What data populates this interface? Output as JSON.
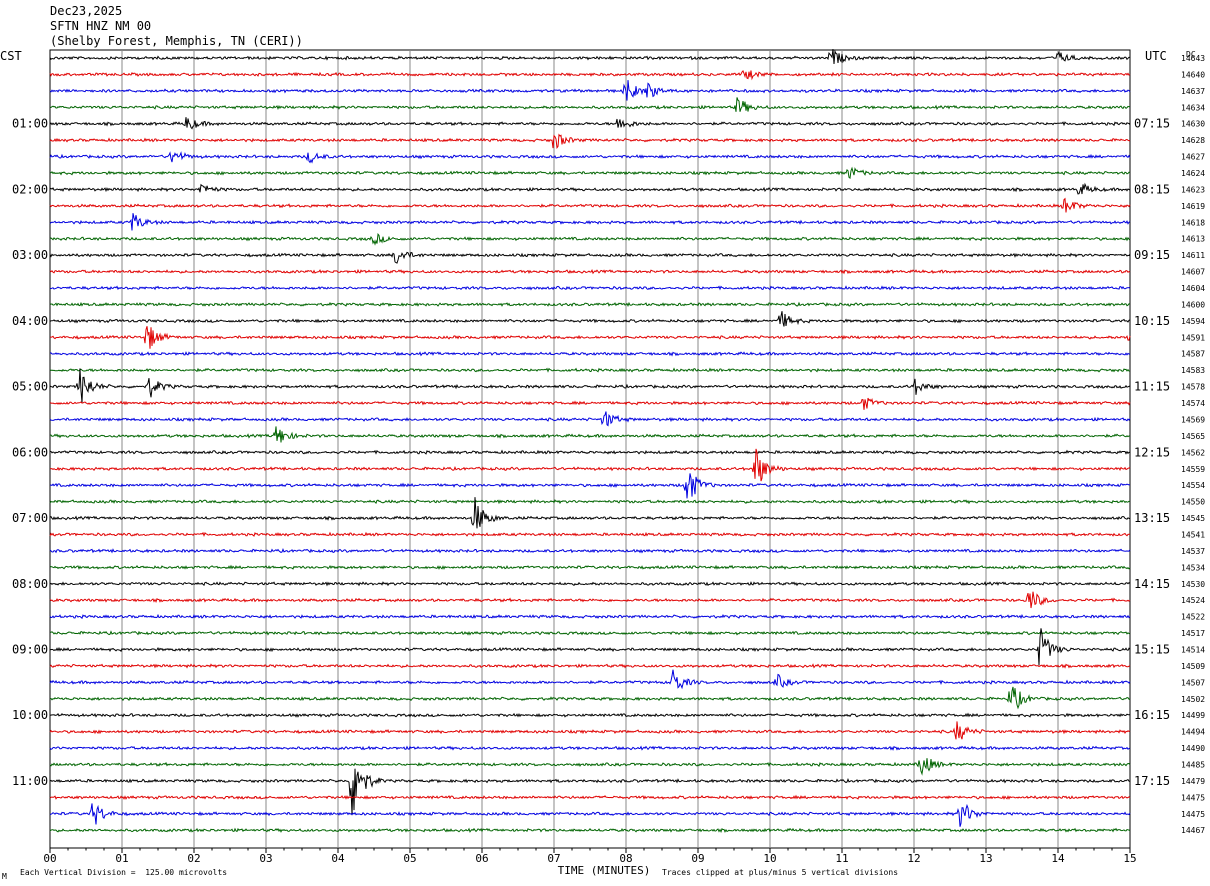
{
  "header": {
    "date": "Dec23,2025",
    "station": "SFTN HNZ NM 00",
    "location": "(Shelby Forest, Memphis, TN (CERI))"
  },
  "chart_data": {
    "type": "line",
    "title": "Dec23,2025 SFTN HNZ NM 00 (Shelby Forest, Memphis, TN (CERI))",
    "xlabel": "TIME (MINUTES)",
    "left_axis_label": "CST",
    "right_axis_label": "UTC",
    "dc_label": "DC",
    "xlim": [
      0,
      15
    ],
    "x_ticks": [
      "00",
      "01",
      "02",
      "03",
      "04",
      "05",
      "06",
      "07",
      "08",
      "09",
      "10",
      "11",
      "12",
      "13",
      "14",
      "15"
    ],
    "trace_colors": [
      "#000000",
      "#e00000",
      "#0000e0",
      "#006400"
    ],
    "trace_count": 48,
    "trace_minutes": 15,
    "left_time_labels": [
      "01:00",
      "02:00",
      "03:00",
      "04:00",
      "05:00",
      "06:00",
      "07:00",
      "08:00",
      "09:00",
      "10:00",
      "11:00"
    ],
    "right_time_labels": [
      "07:15",
      "08:15",
      "09:15",
      "10:15",
      "11:15",
      "12:15",
      "13:15",
      "14:15",
      "15:15",
      "16:15",
      "17:15"
    ],
    "dc_offsets": [
      14643,
      14640,
      14637,
      14634,
      14630,
      14628,
      14627,
      14624,
      14623,
      14619,
      14618,
      14613,
      14611,
      14607,
      14604,
      14600,
      14594,
      14591,
      14587,
      14583,
      14578,
      14574,
      14569,
      14565,
      14562,
      14559,
      14554,
      14550,
      14545,
      14541,
      14537,
      14534,
      14530,
      14524,
      14522,
      14517,
      14514,
      14509,
      14507,
      14502,
      14499,
      14494,
      14490,
      14485,
      14479,
      14475,
      14475,
      14467
    ],
    "events": [
      {
        "trace": 0,
        "minute": 10.85,
        "amp": 1.1
      },
      {
        "trace": 0,
        "minute": 14.0,
        "amp": 0.7
      },
      {
        "trace": 1,
        "minute": 9.65,
        "amp": 0.7
      },
      {
        "trace": 2,
        "minute": 8.0,
        "amp": 1.4
      },
      {
        "trace": 2,
        "minute": 8.3,
        "amp": 0.9
      },
      {
        "trace": 3,
        "minute": 9.55,
        "amp": 1.2
      },
      {
        "trace": 4,
        "minute": 1.9,
        "amp": 0.9
      },
      {
        "trace": 4,
        "minute": 7.9,
        "amp": 0.9
      },
      {
        "trace": 5,
        "minute": 7.0,
        "amp": 1.2
      },
      {
        "trace": 6,
        "minute": 1.7,
        "amp": 0.9
      },
      {
        "trace": 6,
        "minute": 3.6,
        "amp": 0.7
      },
      {
        "trace": 7,
        "minute": 11.1,
        "amp": 0.8
      },
      {
        "trace": 8,
        "minute": 2.1,
        "amp": 0.7
      },
      {
        "trace": 8,
        "minute": 14.3,
        "amp": 0.8
      },
      {
        "trace": 9,
        "minute": 14.1,
        "amp": 1.0
      },
      {
        "trace": 10,
        "minute": 1.15,
        "amp": 1.1
      },
      {
        "trace": 11,
        "minute": 4.5,
        "amp": 0.7
      },
      {
        "trace": 12,
        "minute": 4.8,
        "amp": 1.1
      },
      {
        "trace": 16,
        "minute": 10.15,
        "amp": 1.1
      },
      {
        "trace": 17,
        "minute": 1.35,
        "amp": 1.8
      },
      {
        "trace": 17,
        "minute": 15.0,
        "amp": 1.0
      },
      {
        "trace": 20,
        "minute": 0.42,
        "amp": 2.3
      },
      {
        "trace": 20,
        "minute": 1.38,
        "amp": 1.3
      },
      {
        "trace": 20,
        "minute": 12.0,
        "amp": 1.0
      },
      {
        "trace": 21,
        "minute": 11.3,
        "amp": 0.8
      },
      {
        "trace": 22,
        "minute": 7.7,
        "amp": 1.1
      },
      {
        "trace": 23,
        "minute": 3.15,
        "amp": 1.3
      },
      {
        "trace": 25,
        "minute": 9.8,
        "amp": 2.6
      },
      {
        "trace": 26,
        "minute": 8.85,
        "amp": 2.5
      },
      {
        "trace": 28,
        "minute": 5.9,
        "amp": 2.3
      },
      {
        "trace": 33,
        "minute": 13.6,
        "amp": 1.5
      },
      {
        "trace": 36,
        "minute": 13.75,
        "amp": 2.6
      },
      {
        "trace": 38,
        "minute": 8.65,
        "amp": 1.6
      },
      {
        "trace": 38,
        "minute": 10.1,
        "amp": 0.8
      },
      {
        "trace": 39,
        "minute": 13.35,
        "amp": 2.0
      },
      {
        "trace": 41,
        "minute": 12.6,
        "amp": 1.3
      },
      {
        "trace": 43,
        "minute": 12.1,
        "amp": 1.5
      },
      {
        "trace": 44,
        "minute": 4.2,
        "amp": 5.0
      },
      {
        "trace": 46,
        "minute": 0.6,
        "amp": 1.6
      },
      {
        "trace": 46,
        "minute": 12.65,
        "amp": 1.8
      }
    ]
  },
  "footer": {
    "scale_note": "Each Vertical Division =  125.00 microvolts",
    "clip_note": "Traces clipped at plus/minus 5 vertical divisions",
    "corner_mark": "M"
  }
}
